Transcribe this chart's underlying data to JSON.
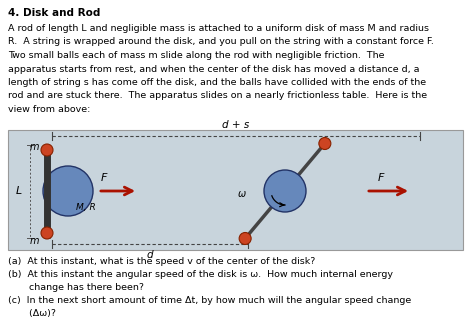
{
  "title": "4. Disk and Rod",
  "panel_bg": "#c8d4dc",
  "body_lines": [
    "A rod of length L and negligible mass is attached to a uniform disk of mass M and radius",
    "R.  A string is wrapped around the disk, and you pull on the string with a constant force F.",
    "Two small balls each of mass m slide along the rod with negligible friction.  The",
    "apparatus starts from rest, and when the center of the disk has moved a distance d, a",
    "length of string s has come off the disk, and the balls have collided with the ends of the",
    "rod and are stuck there.  The apparatus slides on a nearly frictionless table.  Here is the",
    "view from above:"
  ],
  "q_lines": [
    "(a)  At this instant, what is the speed v of the center of the disk?",
    "(b)  At this instant the angular speed of the disk is ω.  How much internal energy",
    "       change has there been?",
    "(c)  In the next short amount of time Δt, by how much will the angular speed change",
    "       (Δω)?"
  ],
  "disk1_color": "#6688bb",
  "disk2_color": "#6688bb",
  "rod_color": "#444444",
  "arrow_color": "#aa1100",
  "ball_color": "#cc4422"
}
